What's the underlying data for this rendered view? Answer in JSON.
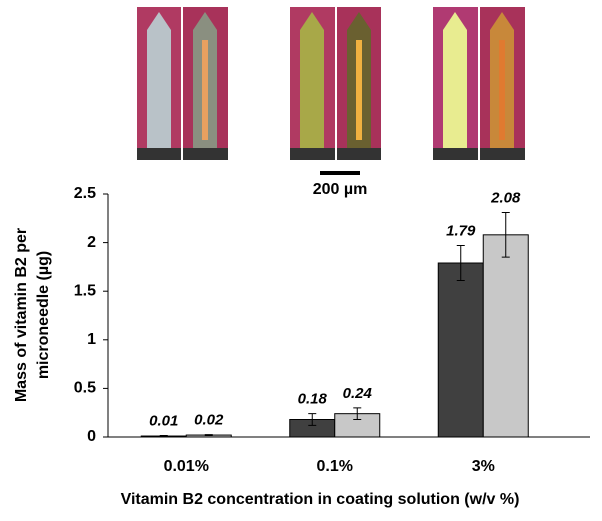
{
  "chart_data": {
    "type": "bar",
    "ylabel": [
      "Mass of vitamin B2 per",
      "microneedle (µg)"
    ],
    "xlabel": "Vitamin B2 concentration in coating solution (w/v %)",
    "scale_bar_label": "200 µm",
    "categories": [
      "0.01%",
      "0.1%",
      "3%"
    ],
    "series": [
      {
        "color": "#404040",
        "values": [
          0.01,
          0.18,
          1.79
        ],
        "errors": [
          0.005,
          0.06,
          0.18
        ]
      },
      {
        "color": "#c8c8c8",
        "values": [
          0.02,
          0.24,
          2.08
        ],
        "errors": [
          0.005,
          0.06,
          0.23
        ]
      }
    ],
    "ylim": [
      0,
      2.5
    ],
    "yticks": [
      0,
      0.5,
      1,
      1.5,
      2,
      2.5
    ],
    "grid": false
  }
}
